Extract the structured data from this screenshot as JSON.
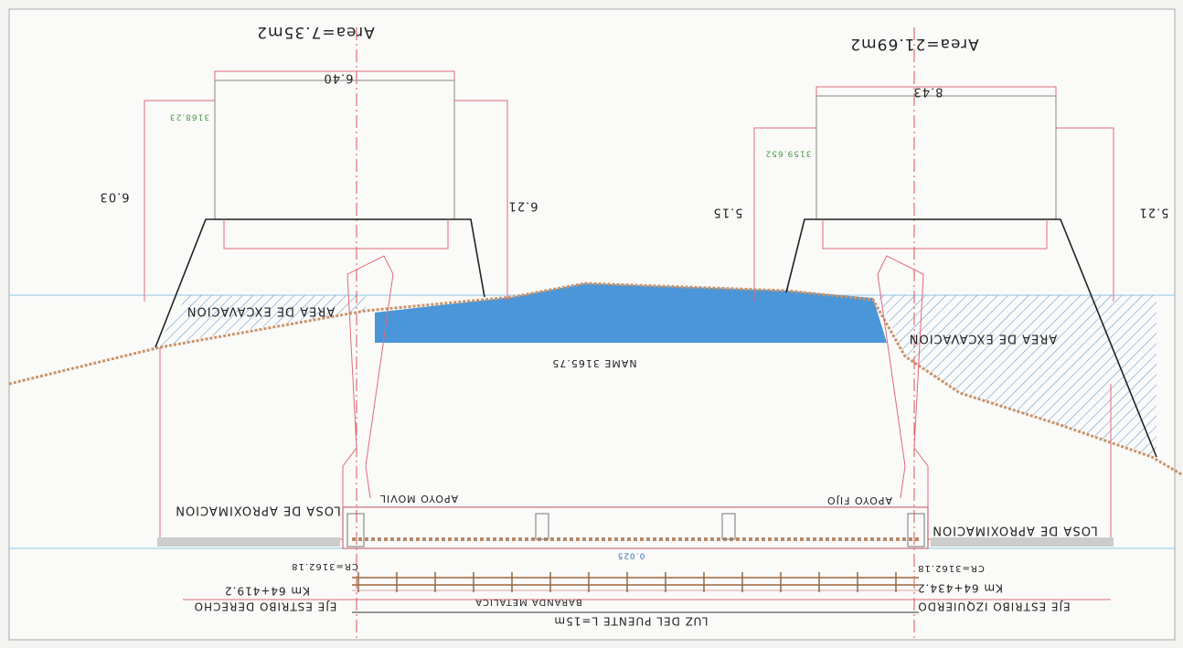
{
  "drawing": {
    "areas": {
      "left": "Area=7.35m2",
      "right": "Area=21.69m2"
    },
    "dimensions": {
      "top_left": "6.40",
      "top_right": "8.43",
      "left_outer": "6.03",
      "left_inner": "6.21",
      "right_inner": "5.15",
      "right_outer": "5.21"
    },
    "elevations": {
      "left": "3168.23",
      "right": "3159.652",
      "water": "NAME 3165.75",
      "support_left": "CR=3162.18",
      "support_right": "CR=3162.18",
      "deck": "0.025"
    },
    "excavation": {
      "left": "AREA DE EXCAVACION",
      "right": "AREA DE EXCAVACION"
    },
    "slabs": {
      "left": "LOSA DE APROXIMACION",
      "right": "LOSA DE APROXIMACION"
    },
    "supports": {
      "left": "APOYO MOVIL",
      "right": "APOYO FIJO"
    },
    "stations": {
      "left": "Km 64+419.2",
      "right": "Km 64+434.2"
    },
    "axes": {
      "left": "EJE ESTRIBO DERECHO",
      "right": "EJE ESTRIBO IZQUIERDO"
    },
    "railing": "BARANDA METALICA",
    "span": "LUZ DEL PUENTE L=15m"
  }
}
